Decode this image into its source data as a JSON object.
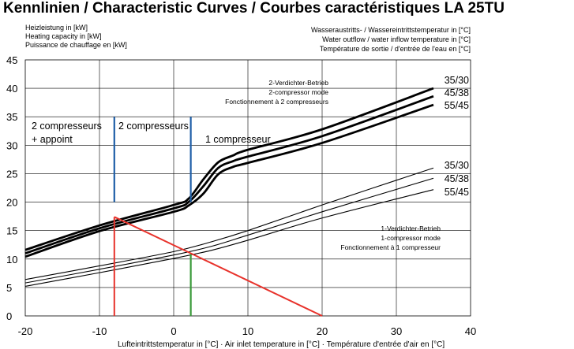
{
  "chart_data": {
    "type": "line",
    "title": "Kennlinien / Characteristic Curves / Courbes caractéristiques LA 25TU",
    "ylabel_lines": [
      "Heizleistung in [kW]",
      "Heating capacity in [kW]",
      "Puissance de chauffage en [kW]"
    ],
    "right_label_lines": [
      "Wasseraustritts- / Wassereintrittstemperatur in [°C]",
      "Water outflow / water inflow temperature in [°C]",
      "Température de sortie / d'entrée de l'eau en [°C]"
    ],
    "xlabel": "Lufteintrittstemperatur in [°C] · Air inlet temperature in [°C] · Température d'entrée d'air en [°C]",
    "xlim": [
      -20,
      40
    ],
    "ylim": [
      0,
      45
    ],
    "xticks": [
      -20,
      -10,
      0,
      10,
      20,
      30,
      40
    ],
    "yticks": [
      0,
      5,
      10,
      15,
      20,
      25,
      30,
      35,
      40,
      45
    ],
    "grid": true,
    "series": [
      {
        "name": "35/30",
        "group": "2-compressor",
        "x": [
          -20,
          -10,
          0,
          2,
          4,
          6,
          8,
          10,
          20,
          35
        ],
        "y": [
          11.6,
          15.9,
          19.5,
          20.6,
          24.0,
          27.0,
          28.2,
          29.2,
          32.8,
          40.0
        ]
      },
      {
        "name": "45/38",
        "group": "2-compressor",
        "x": [
          -20,
          -10,
          0,
          2,
          4,
          6,
          8,
          10,
          20,
          35
        ],
        "y": [
          11.0,
          15.4,
          18.9,
          20.0,
          22.8,
          26.0,
          27.2,
          28.0,
          31.6,
          38.6
        ]
      },
      {
        "name": "55/45",
        "group": "2-compressor",
        "x": [
          -20,
          -10,
          0,
          2,
          4,
          6,
          8,
          10,
          20,
          35
        ],
        "y": [
          10.4,
          14.9,
          18.3,
          19.4,
          21.5,
          24.9,
          26.2,
          26.9,
          30.4,
          37.1
        ]
      },
      {
        "name": "35/30",
        "group": "1-compressor",
        "x": [
          -20,
          -10,
          0,
          5,
          10,
          20,
          35
        ],
        "y": [
          6.4,
          8.8,
          11.3,
          13.0,
          15.0,
          19.5,
          26.0
        ]
      },
      {
        "name": "45/38",
        "group": "1-compressor",
        "x": [
          -20,
          -10,
          0,
          5,
          10,
          20,
          35
        ],
        "y": [
          5.8,
          8.2,
          10.7,
          12.2,
          14.2,
          18.3,
          24.2
        ]
      },
      {
        "name": "55/45",
        "group": "1-compressor",
        "x": [
          -20,
          -10,
          0,
          5,
          10,
          20,
          35
        ],
        "y": [
          5.2,
          7.6,
          10.1,
          11.5,
          13.3,
          17.2,
          22.2
        ]
      }
    ],
    "series_labels": [
      "35/30",
      "45/38",
      "55/45"
    ],
    "mode_2_lines": [
      "2-Verdichter-Betrieb",
      "2-compressor mode",
      "Fonctionnement à 2 compresseurs"
    ],
    "mode_1_lines": [
      "1-Verdichter-Betrieb",
      "1-compressor mode",
      "Fonctionnement à 1 compresseur"
    ],
    "region_labels": {
      "left_line1": "2 compresseurs",
      "left_line2": "+ appoint",
      "middle": "2 compresseurs",
      "right": "1 compresseur"
    },
    "blue_lines": [
      {
        "x": -8,
        "y": [
          20,
          35
        ]
      },
      {
        "x": 2.3,
        "y": [
          20,
          35
        ]
      }
    ],
    "green_line": {
      "x": 2.3,
      "y": [
        0,
        11
      ]
    },
    "red_lines": [
      {
        "x": [
          -8,
          -8
        ],
        "y": [
          0,
          17.4
        ]
      },
      {
        "x": [
          -8,
          20
        ],
        "y": [
          17.4,
          0
        ]
      }
    ],
    "colors": {
      "blue": "#1f5fa8",
      "red": "#e8322b",
      "green": "#3a9a3a",
      "grid": "#000000"
    }
  }
}
